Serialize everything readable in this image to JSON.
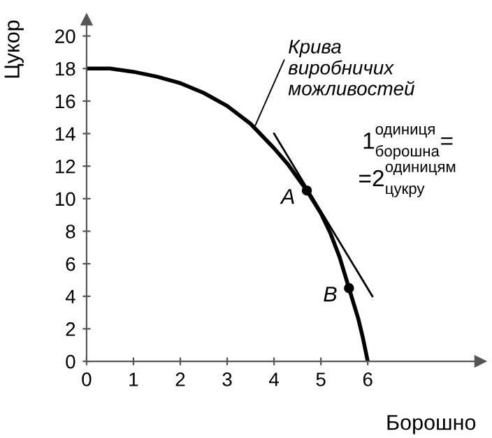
{
  "chart_data": {
    "type": "line",
    "xlabel": "Борошно",
    "ylabel": "Цукор",
    "xlim": [
      0,
      8.4
    ],
    "ylim": [
      0,
      21
    ],
    "xticks": [
      0,
      1,
      2,
      3,
      4,
      5,
      6
    ],
    "yticks": [
      0,
      2,
      4,
      6,
      8,
      10,
      12,
      14,
      16,
      18,
      20
    ],
    "grid": false,
    "series": [
      {
        "color": "#000000",
        "x": [
          0,
          0.5,
          1,
          1.5,
          2,
          2.5,
          3,
          3.5,
          4,
          4.3,
          4.5,
          4.7,
          5,
          5.2,
          5.4,
          5.6,
          5.8,
          5.9,
          6
        ],
        "values": [
          18,
          18,
          17.8,
          17.5,
          17.1,
          16.5,
          15.7,
          14.6,
          13.1,
          12.1,
          11.3,
          10.5,
          9.1,
          7.9,
          6.4,
          4.5,
          2.6,
          1.4,
          0
        ]
      },
      {
        "type": "line",
        "color": "#000000",
        "x": [
          4,
          6.1
        ],
        "values": [
          14,
          4
        ]
      },
      {
        "type": "scatter",
        "color": "#000000",
        "marker": "circle",
        "x": [
          4.7,
          5.6
        ],
        "values": [
          10.5,
          4.5
        ]
      }
    ],
    "annotations": [
      {
        "text": "Крива\nвиробничих\nможливостей",
        "x": 3.6,
        "y": 14.5
      },
      {
        "text": "A",
        "x": 4.7,
        "y": 10.5
      },
      {
        "text": "B",
        "x": 5.6,
        "y": 4.5
      },
      "1 одиниця борошна =",
      "=2 одиницям цукру"
    ]
  }
}
